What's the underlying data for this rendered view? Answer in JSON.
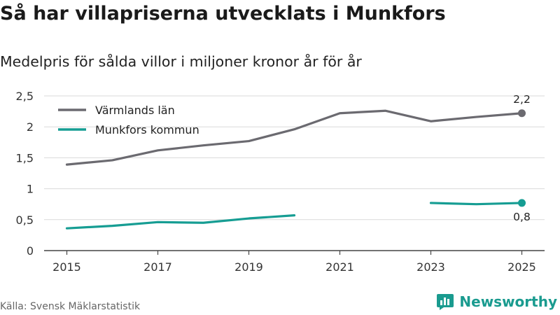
{
  "title": "Så har villapriserna utvecklats i Munkfors",
  "subtitle": "Medelpris för sålda villor i miljoner kronor år för år",
  "source": "Källa: Svensk Mäklarstatistik",
  "brand": {
    "name": "Newsworthy",
    "icon": "bar-chart-logo-icon",
    "color": "#1a9b8f"
  },
  "chart_data": {
    "type": "line",
    "x": [
      2015,
      2016,
      2017,
      2018,
      2019,
      2020,
      2021,
      2022,
      2023,
      2024,
      2025
    ],
    "x_ticks": [
      "2015",
      "2017",
      "2019",
      "2021",
      "2023",
      "2025"
    ],
    "x_tick_values": [
      2015,
      2017,
      2019,
      2021,
      2023,
      2025
    ],
    "xlim": [
      2014.5,
      2025.5
    ],
    "ylim": [
      0,
      2.5
    ],
    "y_ticks": [
      0,
      0.5,
      1,
      1.5,
      2,
      2.5
    ],
    "y_tick_labels": [
      "0",
      "0,5",
      "1",
      "1,5",
      "2",
      "2,5"
    ],
    "grid": true,
    "legend_position": "top-left",
    "series": [
      {
        "name": "Värmlands län",
        "color": "#6b6a70",
        "values": [
          1.39,
          1.46,
          1.62,
          1.7,
          1.77,
          1.96,
          2.22,
          2.26,
          2.09,
          2.16,
          2.22
        ],
        "end_label": "2,2"
      },
      {
        "name": "Munkfors kommun",
        "color": "#169d93",
        "values": [
          0.36,
          0.4,
          0.46,
          0.45,
          0.52,
          0.57,
          null,
          null,
          0.77,
          0.75,
          0.77
        ],
        "end_label": "0,8"
      }
    ]
  }
}
